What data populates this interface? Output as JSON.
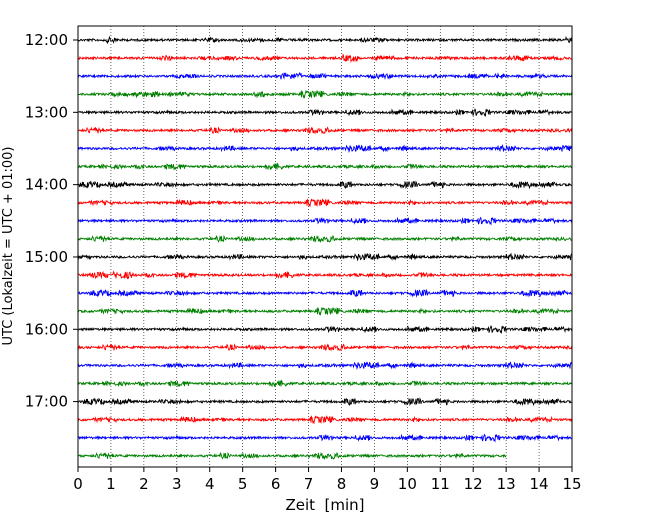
{
  "chart_data": {
    "type": "line",
    "chart_kind": "helicorder",
    "title": "",
    "xlabel": "Zeit  [min]",
    "ylabel": "UTC (Lokalzeit = UTC + 01:00)",
    "xlim": [
      0,
      15
    ],
    "x_ticks": [
      "0",
      "1",
      "2",
      "3",
      "4",
      "5",
      "6",
      "7",
      "8",
      "9",
      "10",
      "11",
      "12",
      "13",
      "14",
      "15"
    ],
    "y_tick_labels": [
      "12:00",
      "13:00",
      "14:00",
      "15:00",
      "16:00",
      "17:00"
    ],
    "grid": "vertical dotted lines at each minute",
    "row_interval_minutes": 15,
    "colors": [
      "#000000",
      "#ff0000",
      "#0000ff",
      "#008000"
    ],
    "rows": [
      {
        "start": "12:00",
        "color": "#000000",
        "end_min": 15
      },
      {
        "start": "12:15",
        "color": "#ff0000",
        "end_min": 15
      },
      {
        "start": "12:30",
        "color": "#0000ff",
        "end_min": 15
      },
      {
        "start": "12:45",
        "color": "#008000",
        "end_min": 15
      },
      {
        "start": "13:00",
        "color": "#000000",
        "end_min": 15
      },
      {
        "start": "13:15",
        "color": "#ff0000",
        "end_min": 15
      },
      {
        "start": "13:30",
        "color": "#0000ff",
        "end_min": 15
      },
      {
        "start": "13:45",
        "color": "#008000",
        "end_min": 15
      },
      {
        "start": "14:00",
        "color": "#000000",
        "end_min": 15
      },
      {
        "start": "14:15",
        "color": "#ff0000",
        "end_min": 15
      },
      {
        "start": "14:30",
        "color": "#0000ff",
        "end_min": 15
      },
      {
        "start": "14:45",
        "color": "#008000",
        "end_min": 15
      },
      {
        "start": "15:00",
        "color": "#000000",
        "end_min": 15
      },
      {
        "start": "15:15",
        "color": "#ff0000",
        "end_min": 15
      },
      {
        "start": "15:30",
        "color": "#0000ff",
        "end_min": 15
      },
      {
        "start": "15:45",
        "color": "#008000",
        "end_min": 15
      },
      {
        "start": "16:00",
        "color": "#000000",
        "end_min": 15
      },
      {
        "start": "16:15",
        "color": "#ff0000",
        "end_min": 15
      },
      {
        "start": "16:30",
        "color": "#0000ff",
        "end_min": 15
      },
      {
        "start": "16:45",
        "color": "#008000",
        "end_min": 15
      },
      {
        "start": "17:00",
        "color": "#000000",
        "end_min": 15
      },
      {
        "start": "17:15",
        "color": "#ff0000",
        "end_min": 15
      },
      {
        "start": "17:30",
        "color": "#0000ff",
        "end_min": 15
      },
      {
        "start": "17:45",
        "color": "#008000",
        "end_min": 13
      }
    ]
  }
}
